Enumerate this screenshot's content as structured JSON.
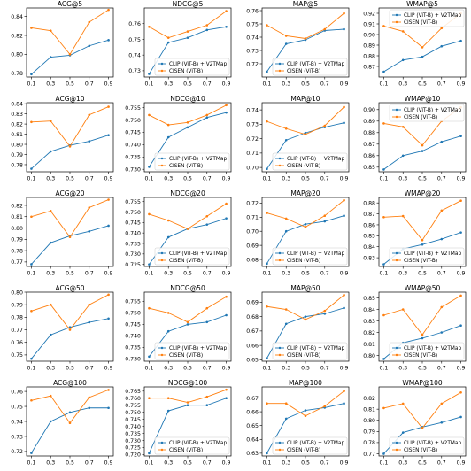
{
  "chart_data": [
    {
      "type": "line",
      "title": "ACG@5",
      "x": [
        0.1,
        0.3,
        0.5,
        0.7,
        0.9
      ],
      "ylim": [
        0.776,
        0.849
      ],
      "yticks": [
        "0.78",
        "0.80",
        "0.82",
        "0.84"
      ],
      "ytick_values": [
        0.78,
        0.8,
        0.82,
        0.84
      ],
      "legend": "none",
      "series": [
        {
          "name": "CLIP (ViT-B) + V2TMap",
          "color": "#1f77b4",
          "values": [
            0.779,
            0.797,
            0.799,
            0.809,
            0.815
          ]
        },
        {
          "name": "CISEN (ViT-B)",
          "color": "#ff7f0e",
          "values": [
            0.828,
            0.825,
            0.8,
            0.834,
            0.847
          ]
        }
      ]
    },
    {
      "type": "line",
      "title": "NDCG@5",
      "x": [
        0.1,
        0.3,
        0.5,
        0.7,
        0.9
      ],
      "ylim": [
        0.726,
        0.77
      ],
      "yticks": [
        "0.73",
        "0.74",
        "0.75",
        "0.76"
      ],
      "ytick_values": [
        0.73,
        0.74,
        0.75,
        0.76
      ],
      "legend": "lower-right",
      "series": [
        {
          "name": "CLIP (ViT-B) + V2TMap",
          "color": "#1f77b4",
          "values": [
            0.728,
            0.748,
            0.751,
            0.756,
            0.758
          ]
        },
        {
          "name": "CISEN (ViT-B)",
          "color": "#ff7f0e",
          "values": [
            0.758,
            0.751,
            0.755,
            0.759,
            0.768
          ]
        }
      ]
    },
    {
      "type": "line",
      "title": "MAP@5",
      "x": [
        0.1,
        0.3,
        0.5,
        0.7,
        0.9
      ],
      "ylim": [
        0.71,
        0.762
      ],
      "yticks": [
        "0.72",
        "0.73",
        "0.74",
        "0.75",
        "0.76"
      ],
      "ytick_values": [
        0.72,
        0.73,
        0.74,
        0.75,
        0.76
      ],
      "legend": "lower-right",
      "series": [
        {
          "name": "CLIP (ViT-B) + V2TMap",
          "color": "#1f77b4",
          "values": [
            0.714,
            0.735,
            0.738,
            0.745,
            0.746
          ]
        },
        {
          "name": "CISEN (ViT-B)",
          "color": "#ff7f0e",
          "values": [
            0.749,
            0.741,
            0.739,
            0.746,
            0.758
          ]
        }
      ]
    },
    {
      "type": "line",
      "title": "WMAP@5",
      "x": [
        0.1,
        0.3,
        0.5,
        0.7,
        0.9
      ],
      "ylim": [
        0.86,
        0.925
      ],
      "yticks": [
        "0.87",
        "0.88",
        "0.89",
        "0.90",
        "0.91",
        "0.92"
      ],
      "ytick_values": [
        0.87,
        0.88,
        0.89,
        0.9,
        0.91,
        0.92
      ],
      "legend": "upper-right",
      "series": [
        {
          "name": "CLIP (ViT-B) + V2TMap",
          "color": "#1f77b4",
          "values": [
            0.865,
            0.876,
            0.879,
            0.889,
            0.894
          ]
        },
        {
          "name": "CISEN (ViT-B)",
          "color": "#ff7f0e",
          "values": [
            0.908,
            0.903,
            0.888,
            0.906,
            0.92
          ]
        }
      ]
    },
    {
      "type": "line",
      "title": "ACG@10",
      "x": [
        0.1,
        0.3,
        0.5,
        0.7,
        0.9
      ],
      "ylim": [
        0.773,
        0.841
      ],
      "yticks": [
        "0.78",
        "0.79",
        "0.80",
        "0.81",
        "0.82",
        "0.83",
        "0.84"
      ],
      "ytick_values": [
        0.78,
        0.79,
        0.8,
        0.81,
        0.82,
        0.83,
        0.84
      ],
      "legend": "none",
      "series": [
        {
          "name": "CLIP (ViT-B) + V2TMap",
          "color": "#1f77b4",
          "values": [
            0.776,
            0.793,
            0.799,
            0.803,
            0.809
          ]
        },
        {
          "name": "CISEN (ViT-B)",
          "color": "#ff7f0e",
          "values": [
            0.822,
            0.823,
            0.798,
            0.829,
            0.837
          ]
        }
      ]
    },
    {
      "type": "line",
      "title": "NDCG@10",
      "x": [
        0.1,
        0.3,
        0.5,
        0.7,
        0.9
      ],
      "ylim": [
        0.729,
        0.757
      ],
      "yticks": [
        "0.730",
        "0.735",
        "0.740",
        "0.745",
        "0.750",
        "0.755"
      ],
      "ytick_values": [
        0.73,
        0.735,
        0.74,
        0.745,
        0.75,
        0.755
      ],
      "legend": "lower-right",
      "series": [
        {
          "name": "CLIP (ViT-B) + V2TMap",
          "color": "#1f77b4",
          "values": [
            0.731,
            0.743,
            0.747,
            0.751,
            0.753
          ]
        },
        {
          "name": "CISEN (ViT-B)",
          "color": "#ff7f0e",
          "values": [
            0.752,
            0.748,
            0.749,
            0.752,
            0.756
          ]
        }
      ]
    },
    {
      "type": "line",
      "title": "MAP@10",
      "x": [
        0.1,
        0.3,
        0.5,
        0.7,
        0.9
      ],
      "ylim": [
        0.697,
        0.745
      ],
      "yticks": [
        "0.70",
        "0.71",
        "0.72",
        "0.73",
        "0.74"
      ],
      "ytick_values": [
        0.7,
        0.71,
        0.72,
        0.73,
        0.74
      ],
      "legend": "lower-right",
      "series": [
        {
          "name": "CLIP (ViT-B) + V2TMap",
          "color": "#1f77b4",
          "values": [
            0.699,
            0.719,
            0.724,
            0.728,
            0.731
          ]
        },
        {
          "name": "CISEN (ViT-B)",
          "color": "#ff7f0e",
          "values": [
            0.732,
            0.727,
            0.723,
            0.729,
            0.742
          ]
        }
      ]
    },
    {
      "type": "line",
      "title": "WMAP@10",
      "x": [
        0.1,
        0.3,
        0.5,
        0.7,
        0.9
      ],
      "ylim": [
        0.846,
        0.906
      ],
      "yticks": [
        "0.85",
        "0.86",
        "0.87",
        "0.88",
        "0.89",
        "0.90"
      ],
      "ytick_values": [
        0.85,
        0.86,
        0.87,
        0.88,
        0.89,
        0.9
      ],
      "legend": "upper-right",
      "series": [
        {
          "name": "CLIP (ViT-B) + V2TMap",
          "color": "#1f77b4",
          "values": [
            0.848,
            0.86,
            0.864,
            0.872,
            0.877
          ]
        },
        {
          "name": "CISEN (ViT-B)",
          "color": "#ff7f0e",
          "values": [
            0.888,
            0.885,
            0.869,
            0.89,
            0.902
          ]
        }
      ]
    },
    {
      "type": "line",
      "title": "ACG@20",
      "x": [
        0.1,
        0.3,
        0.5,
        0.7,
        0.9
      ],
      "ylim": [
        0.766,
        0.827
      ],
      "yticks": [
        "0.77",
        "0.78",
        "0.79",
        "0.80",
        "0.81",
        "0.82"
      ],
      "ytick_values": [
        0.77,
        0.78,
        0.79,
        0.8,
        0.81,
        0.82
      ],
      "legend": "none",
      "series": [
        {
          "name": "CLIP (ViT-B) + V2TMap",
          "color": "#1f77b4",
          "values": [
            0.768,
            0.787,
            0.793,
            0.797,
            0.802
          ]
        },
        {
          "name": "CISEN (ViT-B)",
          "color": "#ff7f0e",
          "values": [
            0.81,
            0.815,
            0.792,
            0.818,
            0.825
          ]
        }
      ]
    },
    {
      "type": "line",
      "title": "NDCG@20",
      "x": [
        0.1,
        0.3,
        0.5,
        0.7,
        0.9
      ],
      "ylim": [
        0.724,
        0.757
      ],
      "yticks": [
        "0.725",
        "0.730",
        "0.735",
        "0.740",
        "0.745",
        "0.750",
        "0.755"
      ],
      "ytick_values": [
        0.725,
        0.73,
        0.735,
        0.74,
        0.745,
        0.75,
        0.755
      ],
      "legend": "lower-right",
      "series": [
        {
          "name": "CLIP (ViT-B) + V2TMap",
          "color": "#1f77b4",
          "values": [
            0.725,
            0.738,
            0.742,
            0.744,
            0.747
          ]
        },
        {
          "name": "CISEN (ViT-B)",
          "color": "#ff7f0e",
          "values": [
            0.749,
            0.746,
            0.742,
            0.748,
            0.754
          ]
        }
      ]
    },
    {
      "type": "line",
      "title": "MAP@20",
      "x": [
        0.1,
        0.3,
        0.5,
        0.7,
        0.9
      ],
      "ylim": [
        0.675,
        0.724
      ],
      "yticks": [
        "0.68",
        "0.69",
        "0.70",
        "0.71",
        "0.72"
      ],
      "ytick_values": [
        0.68,
        0.69,
        0.7,
        0.71,
        0.72
      ],
      "legend": "lower-right",
      "series": [
        {
          "name": "CLIP (ViT-B) + V2TMap",
          "color": "#1f77b4",
          "values": [
            0.677,
            0.7,
            0.705,
            0.707,
            0.711
          ]
        },
        {
          "name": "CISEN (ViT-B)",
          "color": "#ff7f0e",
          "values": [
            0.713,
            0.709,
            0.703,
            0.711,
            0.722
          ]
        }
      ]
    },
    {
      "type": "line",
      "title": "WMAP@20",
      "x": [
        0.1,
        0.3,
        0.5,
        0.7,
        0.9
      ],
      "ylim": [
        0.822,
        0.885
      ],
      "yticks": [
        "0.83",
        "0.84",
        "0.85",
        "0.86",
        "0.87",
        "0.88"
      ],
      "ytick_values": [
        0.83,
        0.84,
        0.85,
        0.86,
        0.87,
        0.88
      ],
      "legend": "lower-right",
      "series": [
        {
          "name": "CLIP (ViT-B) + V2TMap",
          "color": "#1f77b4",
          "values": [
            0.824,
            0.838,
            0.842,
            0.847,
            0.853
          ]
        },
        {
          "name": "CISEN (ViT-B)",
          "color": "#ff7f0e",
          "values": [
            0.867,
            0.868,
            0.846,
            0.873,
            0.882
          ]
        }
      ]
    },
    {
      "type": "line",
      "title": "ACG@50",
      "x": [
        0.1,
        0.3,
        0.5,
        0.7,
        0.9
      ],
      "ylim": [
        0.745,
        0.8
      ],
      "yticks": [
        "0.75",
        "0.76",
        "0.77",
        "0.78",
        "0.79",
        "0.80"
      ],
      "ytick_values": [
        0.75,
        0.76,
        0.77,
        0.78,
        0.79,
        0.8
      ],
      "legend": "none",
      "series": [
        {
          "name": "CLIP (ViT-B) + V2TMap",
          "color": "#1f77b4",
          "values": [
            0.747,
            0.766,
            0.772,
            0.776,
            0.779
          ]
        },
        {
          "name": "CISEN (ViT-B)",
          "color": "#ff7f0e",
          "values": [
            0.785,
            0.79,
            0.77,
            0.79,
            0.798
          ]
        }
      ]
    },
    {
      "type": "line",
      "title": "NDCG@50",
      "x": [
        0.1,
        0.3,
        0.5,
        0.7,
        0.9
      ],
      "ylim": [
        0.729,
        0.759
      ],
      "yticks": [
        "0.730",
        "0.735",
        "0.740",
        "0.745",
        "0.750",
        "0.755"
      ],
      "ytick_values": [
        0.73,
        0.735,
        0.74,
        0.745,
        0.75,
        0.755
      ],
      "legend": "lower-right",
      "series": [
        {
          "name": "CLIP (ViT-B) + V2TMap",
          "color": "#1f77b4",
          "values": [
            0.731,
            0.742,
            0.745,
            0.746,
            0.749
          ]
        },
        {
          "name": "CISEN (ViT-B)",
          "color": "#ff7f0e",
          "values": [
            0.752,
            0.75,
            0.746,
            0.752,
            0.757
          ]
        }
      ]
    },
    {
      "type": "line",
      "title": "MAP@50",
      "x": [
        0.1,
        0.3,
        0.5,
        0.7,
        0.9
      ],
      "ylim": [
        0.649,
        0.697
      ],
      "yticks": [
        "0.65",
        "0.66",
        "0.67",
        "0.68",
        "0.69"
      ],
      "ytick_values": [
        0.65,
        0.66,
        0.67,
        0.68,
        0.69
      ],
      "legend": "lower-right",
      "series": [
        {
          "name": "CLIP (ViT-B) + V2TMap",
          "color": "#1f77b4",
          "values": [
            0.651,
            0.675,
            0.68,
            0.682,
            0.686
          ]
        },
        {
          "name": "CISEN (ViT-B)",
          "color": "#ff7f0e",
          "values": [
            0.687,
            0.685,
            0.678,
            0.684,
            0.695
          ]
        }
      ]
    },
    {
      "type": "line",
      "title": "WMAP@50",
      "x": [
        0.1,
        0.3,
        0.5,
        0.7,
        0.9
      ],
      "ylim": [
        0.795,
        0.855
      ],
      "yticks": [
        "0.80",
        "0.81",
        "0.82",
        "0.83",
        "0.84",
        "0.85"
      ],
      "ytick_values": [
        0.8,
        0.81,
        0.82,
        0.83,
        0.84,
        0.85
      ],
      "legend": "lower-right",
      "series": [
        {
          "name": "CLIP (ViT-B) + V2TMap",
          "color": "#1f77b4",
          "values": [
            0.797,
            0.811,
            0.815,
            0.82,
            0.826
          ]
        },
        {
          "name": "CISEN (ViT-B)",
          "color": "#ff7f0e",
          "values": [
            0.835,
            0.84,
            0.818,
            0.842,
            0.852
          ]
        }
      ]
    },
    {
      "type": "line",
      "title": "ACG@100",
      "x": [
        0.1,
        0.3,
        0.5,
        0.7,
        0.9
      ],
      "ylim": [
        0.717,
        0.763
      ],
      "yticks": [
        "0.72",
        "0.73",
        "0.74",
        "0.75",
        "0.76"
      ],
      "ytick_values": [
        0.72,
        0.73,
        0.74,
        0.75,
        0.76
      ],
      "legend": "none",
      "series": [
        {
          "name": "CLIP (ViT-B) + V2TMap",
          "color": "#1f77b4",
          "values": [
            0.719,
            0.74,
            0.746,
            0.749,
            0.749
          ]
        },
        {
          "name": "CISEN (ViT-B)",
          "color": "#ff7f0e",
          "values": [
            0.754,
            0.757,
            0.739,
            0.756,
            0.761
          ]
        }
      ]
    },
    {
      "type": "line",
      "title": "NDCG@100",
      "x": [
        0.1,
        0.3,
        0.5,
        0.7,
        0.9
      ],
      "ylim": [
        0.719,
        0.768
      ],
      "yticks": [
        "0.720",
        "0.725",
        "0.730",
        "0.735",
        "0.740",
        "0.745",
        "0.750",
        "0.755",
        "0.760",
        "0.765"
      ],
      "ytick_values": [
        0.72,
        0.725,
        0.73,
        0.735,
        0.74,
        0.745,
        0.75,
        0.755,
        0.76,
        0.765
      ],
      "legend": "lower-right",
      "series": [
        {
          "name": "CLIP (ViT-B) + V2TMap",
          "color": "#1f77b4",
          "values": [
            0.721,
            0.751,
            0.755,
            0.755,
            0.76
          ]
        },
        {
          "name": "CISEN (ViT-B)",
          "color": "#ff7f0e",
          "values": [
            0.76,
            0.76,
            0.757,
            0.761,
            0.766
          ]
        }
      ]
    },
    {
      "type": "line",
      "title": "MAP@100",
      "x": [
        0.1,
        0.3,
        0.5,
        0.7,
        0.9
      ],
      "ylim": [
        0.628,
        0.678
      ],
      "yticks": [
        "0.63",
        "0.64",
        "0.65",
        "0.66",
        "0.67"
      ],
      "ytick_values": [
        0.63,
        0.64,
        0.65,
        0.66,
        0.67
      ],
      "legend": "lower-right",
      "series": [
        {
          "name": "CLIP (ViT-B) + V2TMap",
          "color": "#1f77b4",
          "values": [
            0.63,
            0.655,
            0.661,
            0.663,
            0.666
          ]
        },
        {
          "name": "CISEN (ViT-B)",
          "color": "#ff7f0e",
          "values": [
            0.666,
            0.666,
            0.657,
            0.664,
            0.675
          ]
        }
      ]
    },
    {
      "type": "line",
      "title": "WMAP@100",
      "x": [
        0.1,
        0.3,
        0.5,
        0.7,
        0.9
      ],
      "ylim": [
        0.768,
        0.83
      ],
      "yticks": [
        "0.77",
        "0.78",
        "0.79",
        "0.80",
        "0.81",
        "0.82"
      ],
      "ytick_values": [
        0.77,
        0.78,
        0.79,
        0.8,
        0.81,
        0.82
      ],
      "legend": "lower-right",
      "series": [
        {
          "name": "CLIP (ViT-B) + V2TMap",
          "color": "#1f77b4",
          "values": [
            0.77,
            0.789,
            0.794,
            0.798,
            0.803
          ]
        },
        {
          "name": "CISEN (ViT-B)",
          "color": "#ff7f0e",
          "values": [
            0.811,
            0.815,
            0.793,
            0.815,
            0.825
          ]
        }
      ]
    }
  ],
  "xtick_labels": [
    "0.1",
    "0.3",
    "0.5",
    "0.7",
    "0.9"
  ]
}
